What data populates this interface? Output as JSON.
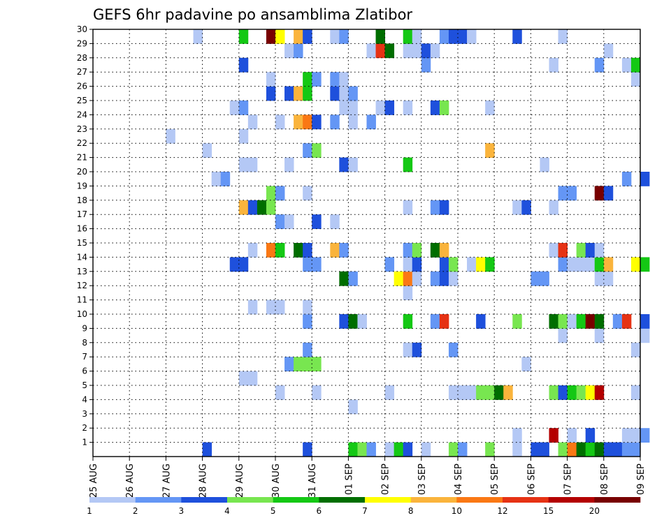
{
  "chart_data": {
    "type": "heatmap",
    "title": "GEFS 6hr padavine po ansamblima Zlatibor",
    "xlabel": "",
    "ylabel": "",
    "grid": true,
    "x_ticks": [
      "25 AUG",
      "26 AUG",
      "27 AUG",
      "28 AUG",
      "29 AUG",
      "30 AUG",
      "31 AUG",
      "01 SEP",
      "02 SEP",
      "03 SEP",
      "04 SEP",
      "05 SEP",
      "06 SEP",
      "07 SEP",
      "08 SEP",
      "09 SEP"
    ],
    "y_ticks": [
      "1",
      "2",
      "3",
      "4",
      "5",
      "6",
      "7",
      "8",
      "9",
      "10",
      "11",
      "12",
      "13",
      "14",
      "15",
      "16",
      "17",
      "18",
      "19",
      "20",
      "21",
      "22",
      "23",
      "24",
      "25",
      "26",
      "27",
      "28",
      "29",
      "30"
    ],
    "time_steps_per_day": 4,
    "member_range": [
      0,
      30
    ],
    "legend_placement": "bottom",
    "legend": {
      "labels": [
        "1",
        "2",
        "3",
        "4",
        "5",
        "6",
        "7",
        "8",
        "10",
        "12",
        "15",
        "20"
      ],
      "colors": [
        "#b4c8f5",
        "#6496f5",
        "#1e50dc",
        "#78e650",
        "#14c814",
        "#006e00",
        "#ffff00",
        "#fab43c",
        "#fa7814",
        "#e63214",
        "#b40000",
        "#780000"
      ]
    },
    "colors": [
      "#b4c8f5",
      "#6496f5",
      "#1e50dc",
      "#78e650",
      "#14c814",
      "#006e00",
      "#ffff00",
      "#fab43c",
      "#fa7814",
      "#e63214",
      "#b40000",
      "#780000"
    ],
    "value_levels": [
      "<2",
      "2-3",
      "3-4",
      "4-5",
      "5-6",
      "6-7",
      "7-8",
      "8-10",
      "10-12",
      "12-15",
      "15-20",
      ">20"
    ],
    "cells": [
      [
        12,
        0,
        2
      ],
      [
        23,
        0,
        2
      ],
      [
        28,
        0,
        4
      ],
      [
        29,
        0,
        3
      ],
      [
        30,
        0,
        1
      ],
      [
        32,
        0,
        0
      ],
      [
        33,
        0,
        4
      ],
      [
        34,
        0,
        2
      ],
      [
        36,
        0,
        0
      ],
      [
        39,
        0,
        3
      ],
      [
        40,
        0,
        1
      ],
      [
        43,
        0,
        3
      ],
      [
        46,
        0,
        0
      ],
      [
        48,
        0,
        2
      ],
      [
        49,
        0,
        2
      ],
      [
        51,
        0,
        3
      ],
      [
        52,
        0,
        8
      ],
      [
        53,
        0,
        5
      ],
      [
        54,
        0,
        4
      ],
      [
        55,
        0,
        5
      ],
      [
        56,
        0,
        2
      ],
      [
        57,
        0,
        2
      ],
      [
        58,
        0,
        1
      ],
      [
        59,
        0,
        1
      ],
      [
        46,
        1,
        0
      ],
      [
        50,
        1,
        10
      ],
      [
        52,
        1,
        0
      ],
      [
        54,
        1,
        2
      ],
      [
        58,
        1,
        0
      ],
      [
        59,
        1,
        0
      ],
      [
        60,
        1,
        1
      ],
      [
        28,
        3,
        0
      ],
      [
        20,
        4,
        0
      ],
      [
        24,
        4,
        0
      ],
      [
        32,
        4,
        0
      ],
      [
        40,
        4,
        0
      ],
      [
        39,
        4,
        0
      ],
      [
        40,
        4,
        0
      ],
      [
        40,
        4,
        0
      ],
      [
        41,
        4,
        0
      ],
      [
        42,
        4,
        3
      ],
      [
        43,
        4,
        3
      ],
      [
        44,
        4,
        5
      ],
      [
        45,
        4,
        7
      ],
      [
        50,
        4,
        3
      ],
      [
        51,
        4,
        2
      ],
      [
        52,
        4,
        4
      ],
      [
        53,
        4,
        3
      ],
      [
        54,
        4,
        6
      ],
      [
        55,
        4,
        10
      ],
      [
        59,
        4,
        0
      ],
      [
        16,
        5,
        0
      ],
      [
        17,
        5,
        0
      ],
      [
        21,
        6,
        1
      ],
      [
        22,
        6,
        3
      ],
      [
        23,
        6,
        3
      ],
      [
        24,
        6,
        3
      ],
      [
        47,
        6,
        0
      ],
      [
        23,
        7,
        1
      ],
      [
        34,
        7,
        0
      ],
      [
        35,
        7,
        2
      ],
      [
        39,
        7,
        1
      ],
      [
        59,
        7,
        0
      ],
      [
        51,
        8,
        0
      ],
      [
        55,
        8,
        0
      ],
      [
        60,
        8,
        0
      ],
      [
        23,
        9,
        1
      ],
      [
        27,
        9,
        2
      ],
      [
        28,
        9,
        5
      ],
      [
        29,
        9,
        0
      ],
      [
        34,
        9,
        4
      ],
      [
        37,
        9,
        1
      ],
      [
        38,
        9,
        9
      ],
      [
        42,
        9,
        2
      ],
      [
        46,
        9,
        3
      ],
      [
        50,
        9,
        5
      ],
      [
        51,
        9,
        3
      ],
      [
        52,
        9,
        0
      ],
      [
        53,
        9,
        4
      ],
      [
        54,
        9,
        11
      ],
      [
        55,
        9,
        5
      ],
      [
        57,
        9,
        1
      ],
      [
        58,
        9,
        9
      ],
      [
        60,
        9,
        2
      ],
      [
        17,
        10,
        0
      ],
      [
        19,
        10,
        0
      ],
      [
        20,
        10,
        0
      ],
      [
        23,
        10,
        0
      ],
      [
        34,
        11,
        0
      ],
      [
        27,
        12,
        5
      ],
      [
        28,
        12,
        1
      ],
      [
        33,
        12,
        6
      ],
      [
        34,
        12,
        8
      ],
      [
        35,
        12,
        0
      ],
      [
        37,
        12,
        1
      ],
      [
        38,
        12,
        2
      ],
      [
        39,
        12,
        0
      ],
      [
        48,
        12,
        1
      ],
      [
        49,
        12,
        1
      ],
      [
        55,
        12,
        0
      ],
      [
        56,
        12,
        0
      ],
      [
        15,
        13,
        2
      ],
      [
        16,
        13,
        2
      ],
      [
        23,
        13,
        1
      ],
      [
        24,
        13,
        1
      ],
      [
        32,
        13,
        1
      ],
      [
        34,
        13,
        0
      ],
      [
        35,
        13,
        2
      ],
      [
        38,
        13,
        2
      ],
      [
        39,
        13,
        3
      ],
      [
        41,
        13,
        0
      ],
      [
        42,
        13,
        6
      ],
      [
        43,
        13,
        4
      ],
      [
        51,
        13,
        1
      ],
      [
        52,
        13,
        0
      ],
      [
        53,
        13,
        0
      ],
      [
        54,
        13,
        0
      ],
      [
        55,
        13,
        4
      ],
      [
        56,
        13,
        7
      ],
      [
        59,
        13,
        6
      ],
      [
        60,
        13,
        4
      ],
      [
        17,
        14,
        0
      ],
      [
        19,
        14,
        8
      ],
      [
        20,
        14,
        4
      ],
      [
        22,
        14,
        5
      ],
      [
        23,
        14,
        2
      ],
      [
        26,
        14,
        7
      ],
      [
        27,
        14,
        1
      ],
      [
        34,
        14,
        1
      ],
      [
        35,
        14,
        3
      ],
      [
        37,
        14,
        5
      ],
      [
        38,
        14,
        7
      ],
      [
        50,
        14,
        0
      ],
      [
        51,
        14,
        9
      ],
      [
        53,
        14,
        3
      ],
      [
        54,
        14,
        2
      ],
      [
        55,
        14,
        0
      ],
      [
        20,
        16,
        1
      ],
      [
        21,
        16,
        0
      ],
      [
        24,
        16,
        2
      ],
      [
        26,
        16,
        0
      ],
      [
        16,
        17,
        7
      ],
      [
        17,
        17,
        2
      ],
      [
        18,
        17,
        5
      ],
      [
        19,
        17,
        3
      ],
      [
        34,
        17,
        0
      ],
      [
        37,
        17,
        1
      ],
      [
        38,
        17,
        2
      ],
      [
        46,
        17,
        0
      ],
      [
        47,
        17,
        2
      ],
      [
        50,
        17,
        0
      ],
      [
        19,
        18,
        3
      ],
      [
        20,
        18,
        1
      ],
      [
        23,
        18,
        0
      ],
      [
        51,
        18,
        1
      ],
      [
        52,
        18,
        1
      ],
      [
        55,
        18,
        11
      ],
      [
        56,
        18,
        2
      ],
      [
        13,
        19,
        0
      ],
      [
        14,
        19,
        1
      ],
      [
        58,
        19,
        1
      ],
      [
        60,
        19,
        2
      ],
      [
        16,
        20,
        0
      ],
      [
        17,
        20,
        0
      ],
      [
        21,
        20,
        0
      ],
      [
        27,
        20,
        2
      ],
      [
        28,
        20,
        0
      ],
      [
        34,
        20,
        4
      ],
      [
        49,
        20,
        0
      ],
      [
        12,
        21,
        0
      ],
      [
        23,
        21,
        1
      ],
      [
        24,
        21,
        3
      ],
      [
        43,
        21,
        7
      ],
      [
        8,
        22,
        0
      ],
      [
        16,
        22,
        0
      ],
      [
        17,
        23,
        0
      ],
      [
        20,
        23,
        0
      ],
      [
        22,
        23,
        7
      ],
      [
        23,
        23,
        8
      ],
      [
        24,
        23,
        2
      ],
      [
        26,
        23,
        1
      ],
      [
        28,
        23,
        0
      ],
      [
        30,
        23,
        1
      ],
      [
        15,
        24,
        0
      ],
      [
        16,
        24,
        1
      ],
      [
        27,
        24,
        0
      ],
      [
        28,
        24,
        0
      ],
      [
        31,
        24,
        0
      ],
      [
        32,
        24,
        2
      ],
      [
        34,
        24,
        0
      ],
      [
        37,
        24,
        2
      ],
      [
        38,
        24,
        3
      ],
      [
        43,
        24,
        0
      ],
      [
        19,
        25,
        2
      ],
      [
        21,
        25,
        2
      ],
      [
        22,
        25,
        7
      ],
      [
        23,
        25,
        4
      ],
      [
        26,
        25,
        2
      ],
      [
        27,
        25,
        0
      ],
      [
        28,
        25,
        1
      ],
      [
        19,
        26,
        0
      ],
      [
        23,
        26,
        4
      ],
      [
        24,
        26,
        1
      ],
      [
        26,
        26,
        1
      ],
      [
        27,
        26,
        0
      ],
      [
        59,
        26,
        0
      ],
      [
        16,
        27,
        2
      ],
      [
        36,
        27,
        1
      ],
      [
        50,
        27,
        0
      ],
      [
        55,
        27,
        1
      ],
      [
        58,
        27,
        0
      ],
      [
        59,
        27,
        4
      ],
      [
        21,
        28,
        0
      ],
      [
        22,
        28,
        1
      ],
      [
        30,
        28,
        0
      ],
      [
        31,
        28,
        9
      ],
      [
        32,
        28,
        5
      ],
      [
        34,
        28,
        0
      ],
      [
        35,
        28,
        0
      ],
      [
        36,
        28,
        2
      ],
      [
        37,
        28,
        0
      ],
      [
        56,
        28,
        0
      ],
      [
        11,
        29,
        0
      ],
      [
        16,
        29,
        4
      ],
      [
        19,
        29,
        11
      ],
      [
        20,
        29,
        6
      ],
      [
        22,
        29,
        7
      ],
      [
        23,
        29,
        2
      ],
      [
        26,
        29,
        0
      ],
      [
        27,
        29,
        1
      ],
      [
        31,
        29,
        5
      ],
      [
        34,
        29,
        4
      ],
      [
        35,
        29,
        0
      ],
      [
        38,
        29,
        1
      ],
      [
        39,
        29,
        2
      ],
      [
        40,
        29,
        2
      ],
      [
        41,
        29,
        0
      ],
      [
        46,
        29,
        2
      ],
      [
        51,
        29,
        0
      ]
    ]
  }
}
